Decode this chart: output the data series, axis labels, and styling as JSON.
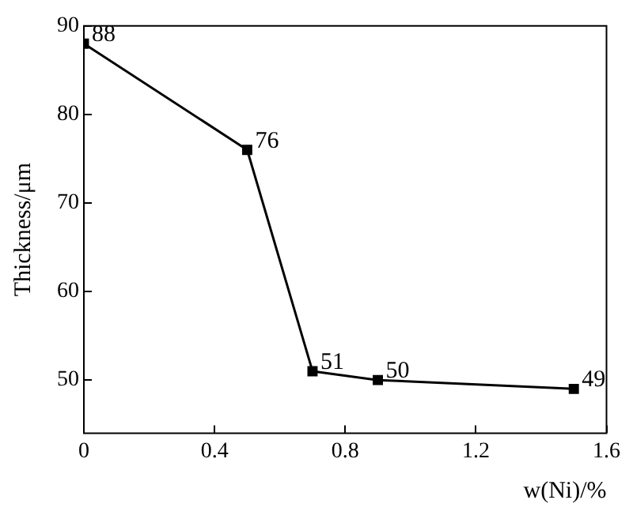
{
  "chart_data": {
    "type": "line",
    "xlabel": "w(Ni)/%",
    "ylabel": "Thickness/μm",
    "x": [
      0,
      0.5,
      0.7,
      0.9,
      1.5
    ],
    "series": [
      {
        "color": "#000000",
        "values": [
          88,
          76,
          51,
          50,
          49
        ]
      }
    ],
    "xlim": [
      0,
      1.6
    ],
    "xticks": [
      0,
      0.4,
      0.8,
      1.2,
      1.6
    ],
    "ylim": [
      44,
      90
    ],
    "yticks": [
      50,
      60,
      70,
      80,
      90
    ],
    "data_labels": true,
    "marker": "square",
    "line_style": "solid",
    "grid": false,
    "legend": false
  }
}
